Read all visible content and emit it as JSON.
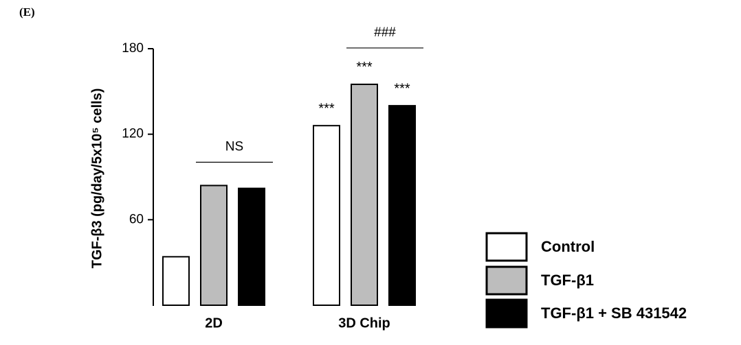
{
  "panel_label": "(E)",
  "chart_data": {
    "type": "bar",
    "y_label": "TGF-β3 (pg/day/5x10⁵ cells)",
    "categories": [
      "2D",
      "3D Chip"
    ],
    "series": [
      {
        "name": "Control",
        "color": "#ffffff",
        "values": [
          34,
          126
        ]
      },
      {
        "name": "TGF-β1",
        "color": "#bdbdbd",
        "values": [
          84,
          155
        ]
      },
      {
        "name": "TGF-β1 + SB 431542",
        "color": "#000000",
        "values": [
          82,
          140
        ]
      }
    ],
    "ylim": [
      0,
      180
    ],
    "yticks": [
      60,
      120,
      180
    ],
    "annotations": [
      {
        "text": "NS",
        "category": 0
      },
      {
        "text": "###",
        "category": 1
      }
    ],
    "bar_labels": [
      {
        "text": "***",
        "series": 0,
        "category": 1
      },
      {
        "text": "***",
        "series": 1,
        "category": 1
      },
      {
        "text": "***",
        "series": 2,
        "category": 1
      }
    ]
  }
}
